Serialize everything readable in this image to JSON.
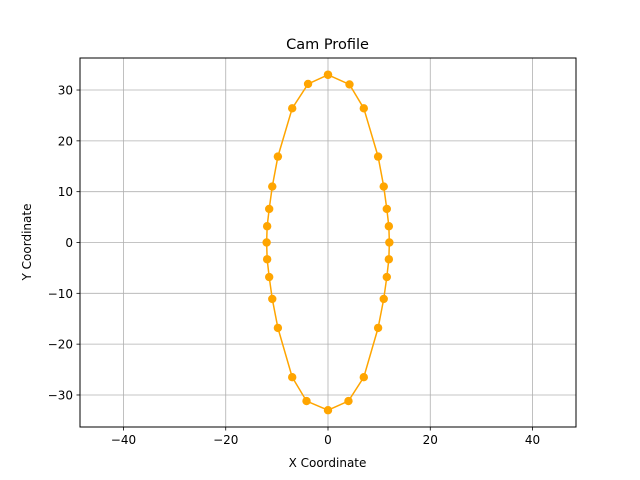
{
  "chart_data": {
    "type": "line",
    "title": "Cam Profile",
    "xlabel": "X Coordinate",
    "ylabel": "Y Coordinate",
    "xlim": [
      -48.5,
      48.5
    ],
    "ylim": [
      -36.3,
      36.3
    ],
    "xticks": [
      -40,
      -20,
      0,
      20,
      40
    ],
    "yticks": [
      -30,
      -20,
      -10,
      0,
      10,
      20,
      30
    ],
    "xtick_labels": [
      "−40",
      "−20",
      "0",
      "20",
      "40"
    ],
    "ytick_labels": [
      "−30",
      "−20",
      "−10",
      "0",
      "10",
      "20",
      "30"
    ],
    "grid": true,
    "series": [
      {
        "color": "#ffa500",
        "marker": "circle",
        "points": [
          [
            0,
            33.0
          ],
          [
            4.2,
            31.1
          ],
          [
            7.0,
            26.4
          ],
          [
            9.8,
            16.9
          ],
          [
            10.9,
            11.0
          ],
          [
            11.5,
            6.6
          ],
          [
            11.9,
            3.2
          ],
          [
            12.0,
            0
          ],
          [
            11.9,
            -3.3
          ],
          [
            11.5,
            -6.8
          ],
          [
            10.9,
            -11.1
          ],
          [
            9.8,
            -16.8
          ],
          [
            7.0,
            -26.5
          ],
          [
            4.0,
            -31.2
          ],
          [
            0,
            -33.0
          ],
          [
            -4.2,
            -31.2
          ],
          [
            -7.0,
            -26.5
          ],
          [
            -9.8,
            -16.8
          ],
          [
            -10.9,
            -11.1
          ],
          [
            -11.5,
            -6.8
          ],
          [
            -11.9,
            -3.3
          ],
          [
            -12.0,
            0
          ],
          [
            -11.9,
            3.2
          ],
          [
            -11.5,
            6.6
          ],
          [
            -10.9,
            11.0
          ],
          [
            -9.8,
            16.9
          ],
          [
            -7.0,
            26.4
          ],
          [
            -3.9,
            31.2
          ],
          [
            0,
            33.0
          ]
        ]
      }
    ]
  }
}
